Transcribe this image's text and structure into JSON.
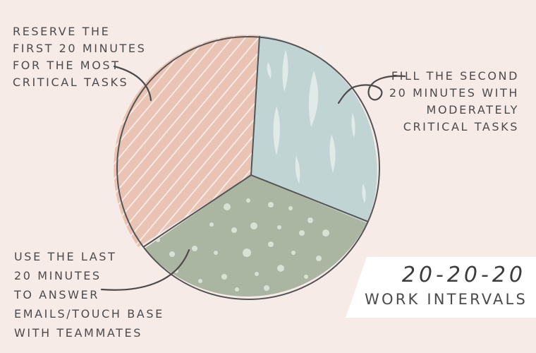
{
  "notes": {
    "first": [
      "RESERVE THE",
      "FIRST 20 MINUTES",
      "FOR THE MOST",
      "CRITICAL TASKS"
    ],
    "second": [
      "FILL THE SECOND",
      "20 MINUTES WITH",
      "MODERATELY",
      "CRITICAL TASKS"
    ],
    "last": [
      "USE THE LAST",
      "20 MINUTES",
      "TO ANSWER",
      "EMAILS/TOUCH BASE",
      "WITH TEAMMATES"
    ]
  },
  "title": {
    "main": "20-20-20",
    "sub": "WORK INTERVALS"
  },
  "colors": {
    "background": "#f6ebe7",
    "first_segment": "#e9c4b4",
    "second_segment": "#c0d4d3",
    "last_segment": "#aab6a2",
    "outline": "#545456",
    "text": "#4d4a4c",
    "banner": "#ffffff"
  }
}
